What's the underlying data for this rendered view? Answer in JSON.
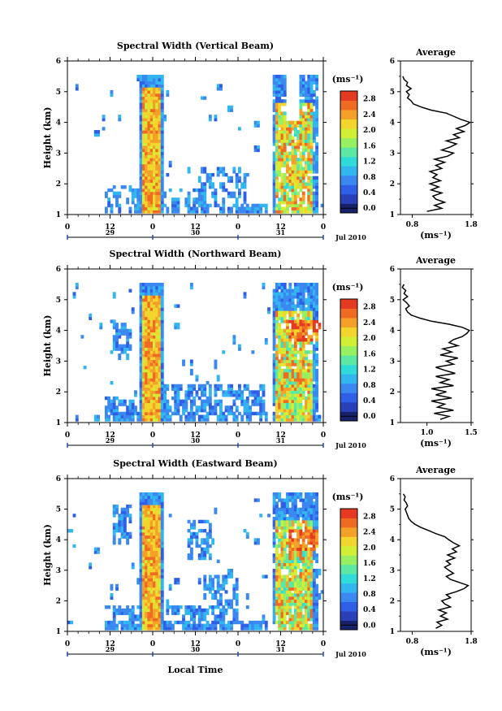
{
  "shared": {
    "time_ticks": [
      "0",
      "12",
      "0",
      "12",
      "0",
      "12",
      "0"
    ],
    "date_labels": [
      "29",
      "30",
      "31"
    ],
    "date_suffix": "Jul 2010",
    "height_ticks": [
      "1",
      "2",
      "3",
      "4",
      "5",
      "6"
    ],
    "xlabel": "Local Time",
    "ylabel": "Height (km)",
    "colorbar_unit": "(ms⁻¹)",
    "colorbar_ticks": [
      "0.0",
      "0.4",
      "0.8",
      "1.2",
      "1.6",
      "2.0",
      "2.4",
      "2.8"
    ],
    "colorbar_range": [
      0,
      3.0
    ],
    "colormap": [
      "#16236b",
      "#2940b8",
      "#2e5fe6",
      "#3b88f0",
      "#33b6ef",
      "#31dbd8",
      "#5be7a4",
      "#97ef62",
      "#d2ee35",
      "#f2d52d",
      "#f5a028",
      "#ef6a23",
      "#e33a21"
    ],
    "profile_title": "Average",
    "profile_xlabel": "(ms⁻¹)"
  },
  "chart_data": [
    {
      "type": "heatmap",
      "title": "Spectral Width (Vertical Beam)",
      "xlabel": "",
      "x_range_hours": [
        0,
        72
      ],
      "ylim": [
        1,
        6
      ],
      "profile_xticks": [
        "0.8",
        "1.8"
      ],
      "profile_xlim": [
        0.6,
        1.8
      ],
      "profile": {
        "height_km": [
          1.1,
          1.2,
          1.3,
          1.4,
          1.5,
          1.6,
          1.7,
          1.8,
          1.9,
          2.0,
          2.1,
          2.2,
          2.3,
          2.4,
          2.5,
          2.6,
          2.7,
          2.8,
          2.9,
          3.0,
          3.1,
          3.2,
          3.3,
          3.4,
          3.5,
          3.6,
          3.7,
          3.8,
          3.9,
          4.0,
          4.1,
          4.2,
          4.3,
          4.4,
          4.5,
          4.6,
          4.7,
          4.8,
          4.9,
          5.0,
          5.1,
          5.2,
          5.3,
          5.4,
          5.5
        ],
        "width_ms": [
          1.05,
          1.3,
          1.18,
          1.35,
          1.2,
          1.15,
          1.3,
          1.12,
          1.25,
          1.1,
          1.28,
          1.15,
          1.22,
          1.1,
          1.3,
          1.2,
          1.35,
          1.18,
          1.4,
          1.5,
          1.3,
          1.45,
          1.55,
          1.38,
          1.6,
          1.5,
          1.68,
          1.55,
          1.7,
          1.78,
          1.62,
          1.5,
          1.38,
          1.12,
          0.95,
          0.82,
          0.78,
          0.72,
          0.75,
          0.7,
          0.78,
          0.7,
          0.72,
          0.66,
          0.64
        ]
      }
    },
    {
      "type": "heatmap",
      "title": "Spectral Width (Northward Beam)",
      "xlabel": "",
      "x_range_hours": [
        0,
        72
      ],
      "ylim": [
        1,
        6
      ],
      "profile_xticks": [
        "1.0",
        "1.5"
      ],
      "profile_xlim": [
        0.7,
        1.5
      ],
      "profile": {
        "height_km": [
          1.1,
          1.2,
          1.3,
          1.4,
          1.5,
          1.6,
          1.7,
          1.8,
          1.9,
          2.0,
          2.1,
          2.2,
          2.3,
          2.4,
          2.5,
          2.6,
          2.7,
          2.8,
          2.9,
          3.0,
          3.1,
          3.2,
          3.3,
          3.4,
          3.5,
          3.6,
          3.7,
          3.8,
          3.9,
          4.0,
          4.1,
          4.2,
          4.3,
          4.4,
          4.5,
          4.6,
          4.7,
          4.8,
          4.9,
          5.0,
          5.1,
          5.2,
          5.3,
          5.4,
          5.5
        ],
        "width_ms": [
          1.15,
          1.25,
          1.08,
          1.3,
          1.12,
          1.2,
          1.05,
          1.28,
          1.1,
          1.22,
          1.05,
          1.3,
          1.15,
          1.25,
          1.1,
          1.32,
          1.2,
          1.1,
          1.3,
          1.22,
          1.35,
          1.15,
          1.28,
          1.18,
          1.35,
          1.25,
          1.3,
          1.4,
          1.45,
          1.48,
          1.4,
          1.25,
          1.05,
          0.92,
          0.82,
          0.78,
          0.76,
          0.8,
          0.77,
          0.73,
          0.78,
          0.74,
          0.76,
          0.72,
          0.74
        ]
      }
    },
    {
      "type": "heatmap",
      "title": "Spectral Width (Eastward Beam)",
      "xlabel": "Local Time",
      "x_range_hours": [
        0,
        72
      ],
      "ylim": [
        1,
        6
      ],
      "profile_xticks": [
        "0.8",
        "1.8"
      ],
      "profile_xlim": [
        0.6,
        1.8
      ],
      "profile": {
        "height_km": [
          1.1,
          1.2,
          1.3,
          1.4,
          1.5,
          1.6,
          1.7,
          1.8,
          1.9,
          2.0,
          2.1,
          2.2,
          2.3,
          2.4,
          2.5,
          2.6,
          2.7,
          2.8,
          2.9,
          3.0,
          3.1,
          3.2,
          3.3,
          3.4,
          3.5,
          3.6,
          3.7,
          3.8,
          3.9,
          4.0,
          4.1,
          4.2,
          4.3,
          4.4,
          4.5,
          4.6,
          4.7,
          4.8,
          4.9,
          5.0,
          5.1,
          5.2,
          5.3,
          5.4,
          5.5
        ],
        "width_ms": [
          1.2,
          1.3,
          1.22,
          1.4,
          1.28,
          1.38,
          1.25,
          1.45,
          1.35,
          1.3,
          1.45,
          1.38,
          1.55,
          1.68,
          1.75,
          1.6,
          1.45,
          1.38,
          1.5,
          1.42,
          1.35,
          1.45,
          1.38,
          1.52,
          1.4,
          1.55,
          1.48,
          1.6,
          1.5,
          1.42,
          1.35,
          1.2,
          1.08,
          0.95,
          0.85,
          0.78,
          0.74,
          0.72,
          0.7,
          0.68,
          0.72,
          0.7,
          0.66,
          0.68,
          0.65
        ]
      }
    }
  ]
}
